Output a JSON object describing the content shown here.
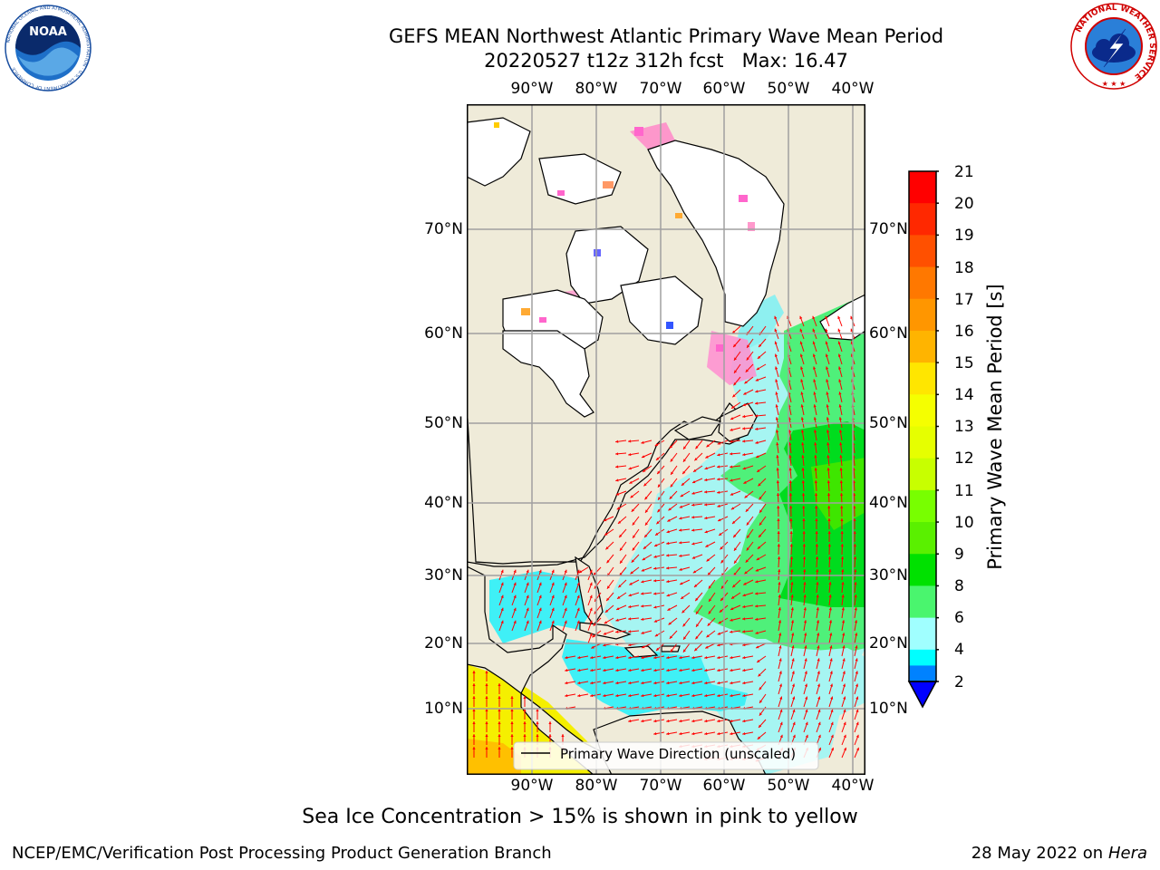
{
  "header": {
    "title_line1": "GEFS MEAN Northwest Atlantic Primary Wave Mean Period",
    "title_line2": "20220527 t12z 312h fcst   Max: 16.47"
  },
  "logos": {
    "noaa_text": "NOAA",
    "noaa_ring_text": "NATIONAL OCEANIC AND ATMOSPHERIC ADMINISTRATION · U.S. DEPARTMENT OF COMMERCE",
    "nws_ring_text": "NATIONAL WEATHER SERVICE"
  },
  "map": {
    "lon_labels": [
      "90°W",
      "80°W",
      "70°W",
      "60°W",
      "50°W",
      "40°W"
    ],
    "lat_labels": [
      "70°N",
      "60°N",
      "50°N",
      "40°N",
      "30°N",
      "20°N",
      "10°N"
    ],
    "legend_label": "Primary Wave Direction (unscaled)",
    "arrow_color": "#ff0000"
  },
  "colorbar": {
    "label": "Primary Wave Mean Period [s]",
    "ticks": [
      "21",
      "20",
      "19",
      "18",
      "17",
      "16",
      "15",
      "14",
      "13",
      "12",
      "11",
      "10",
      "9",
      "8",
      "6",
      "4",
      "2"
    ],
    "colors": [
      "#ff0000",
      "#ff2800",
      "#ff5000",
      "#ff7800",
      "#ff9600",
      "#ffb400",
      "#ffe600",
      "#f5ff00",
      "#e6ff00",
      "#c8ff00",
      "#78ff00",
      "#5af000",
      "#00e100",
      "#4af56e",
      "#a0ffff",
      "#50ffff",
      "#00ffff",
      "#00d2ff",
      "#0082ff"
    ],
    "extend_color": "#0000ff"
  },
  "ice_note": "Sea Ice Concentration > 15% is shown in pink to yellow",
  "footer": {
    "left": "NCEP/EMC/Verification Post Processing Product Generation Branch",
    "right_date": "28 May 2022 on",
    "right_machine": "Hera"
  }
}
